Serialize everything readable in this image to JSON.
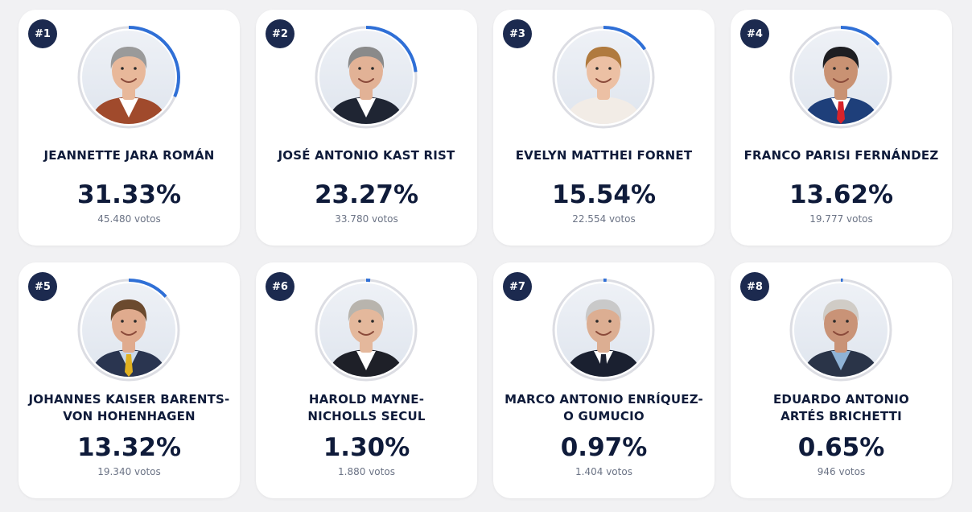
{
  "candidates": [
    {
      "rank": "#1",
      "name": "JEANNETTE JARA ROMÁN",
      "percent": "31.33%",
      "votes": "45.480 votos",
      "share": 31.33,
      "hair": "#9a9a9a",
      "skin": "#e8b89a",
      "outfit": "#a04a2c",
      "shirt": "#ffffff",
      "tie": "none"
    },
    {
      "rank": "#2",
      "name": "JOSÉ ANTONIO KAST RIST",
      "percent": "23.27%",
      "votes": "33.780 votos",
      "share": 23.27,
      "hair": "#8a8a8a",
      "skin": "#e2b296",
      "outfit": "#1f2533",
      "shirt": "#ffffff",
      "tie": "none"
    },
    {
      "rank": "#3",
      "name": "EVELYN MATTHEI FORNET",
      "percent": "15.54%",
      "votes": "22.554 votos",
      "share": 15.54,
      "hair": "#b07a3e",
      "skin": "#ecc0a4",
      "outfit": "#f2ece6",
      "shirt": "#f2ece6",
      "tie": "none"
    },
    {
      "rank": "#4",
      "name": "FRANCO PARISI FERNÁNDEZ",
      "percent": "13.62%",
      "votes": "19.777 votos",
      "share": 13.62,
      "hair": "#1e1e22",
      "skin": "#c99273",
      "outfit": "#1e3f7a",
      "shirt": "#ffffff",
      "tie": "#d8232a"
    },
    {
      "rank": "#5",
      "name": "JOHANNES KAISER BARENTS-VON HOHENHAGEN",
      "percent": "13.32%",
      "votes": "19.340 votos",
      "share": 13.32,
      "hair": "#6b4a2e",
      "skin": "#e0ab8e",
      "outfit": "#2a3550",
      "shirt": "#c8d8ea",
      "tie": "#e0b020"
    },
    {
      "rank": "#6",
      "name": "HAROLD MAYNE-NICHOLLS SECUL",
      "percent": "1.30%",
      "votes": "1.880 votos",
      "share": 1.3,
      "hair": "#b8b4ad",
      "skin": "#e4b89c",
      "outfit": "#1e2028",
      "shirt": "#ffffff",
      "tie": "none"
    },
    {
      "rank": "#7",
      "name": "MARCO ANTONIO ENRÍQUEZ-O GUMUCIO",
      "percent": "0.97%",
      "votes": "1.404 votos",
      "share": 0.97,
      "hair": "#c9c9c9",
      "skin": "#dcae92",
      "outfit": "#1a2030",
      "shirt": "#ffffff",
      "tie": "#1a2030"
    },
    {
      "rank": "#8",
      "name": "EDUARDO ANTONIO ARTÉS BRICHETTI",
      "percent": "0.65%",
      "votes": "946 votos",
      "share": 0.65,
      "hair": "#d0ccc6",
      "skin": "#c99377",
      "outfit": "#2a3448",
      "shirt": "#8fb3d6",
      "tie": "none"
    }
  ],
  "colors": {
    "accent": "#2f6fd6",
    "ring_track": "#dcdde3",
    "badge": "#1c2a4f"
  }
}
